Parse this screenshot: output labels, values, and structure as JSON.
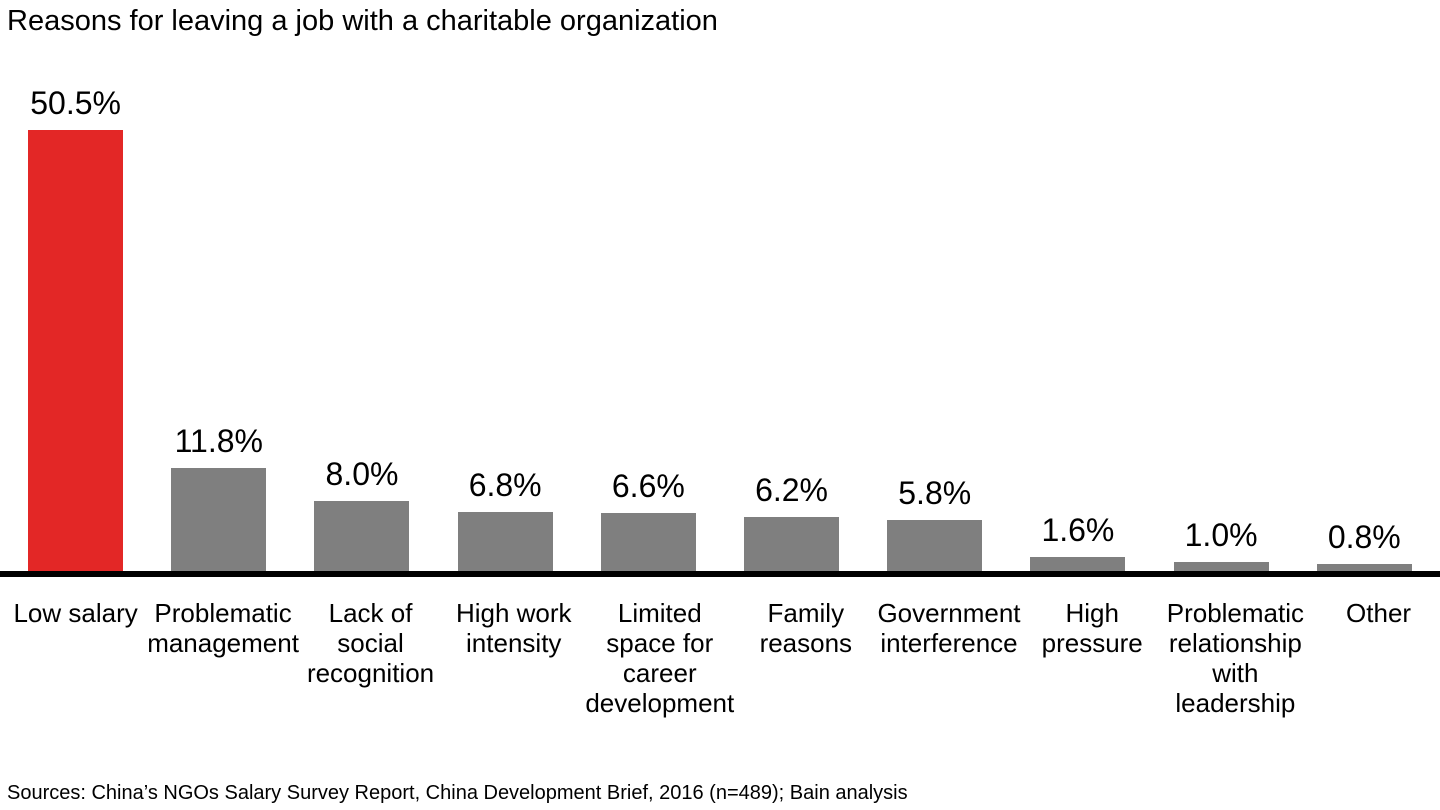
{
  "chart_data": {
    "type": "bar",
    "title": "Reasons for leaving a job with a charitable organization",
    "categories": [
      "Low salary",
      "Problematic\nmanagement",
      "Lack of\nsocial\nrecognition",
      "High work\nintensity",
      "Limited\nspace for\ncareer\ndevelopment",
      "Family\nreasons",
      "Government\ninterference",
      "High\npressure",
      "Problematic\nrelationship\nwith leadership",
      "Other"
    ],
    "values": [
      50.5,
      11.8,
      8.0,
      6.8,
      6.6,
      6.2,
      5.8,
      1.6,
      1.0,
      0.8
    ],
    "value_labels": [
      "50.5%",
      "11.8%",
      "8.0%",
      "6.8%",
      "6.6%",
      "6.2%",
      "5.8%",
      "1.6%",
      "1.0%",
      "0.8%"
    ],
    "unit": "%",
    "highlight_index": 0,
    "colors": {
      "highlight": "#e32726",
      "default": "#7f7f7f",
      "axis": "#000000"
    },
    "ylim": [
      0,
      52
    ],
    "grid": false,
    "legend": "none",
    "source": "Sources: China’s NGOs Salary Survey Report, China Development Brief, 2016 (n=489); Bain analysis"
  }
}
